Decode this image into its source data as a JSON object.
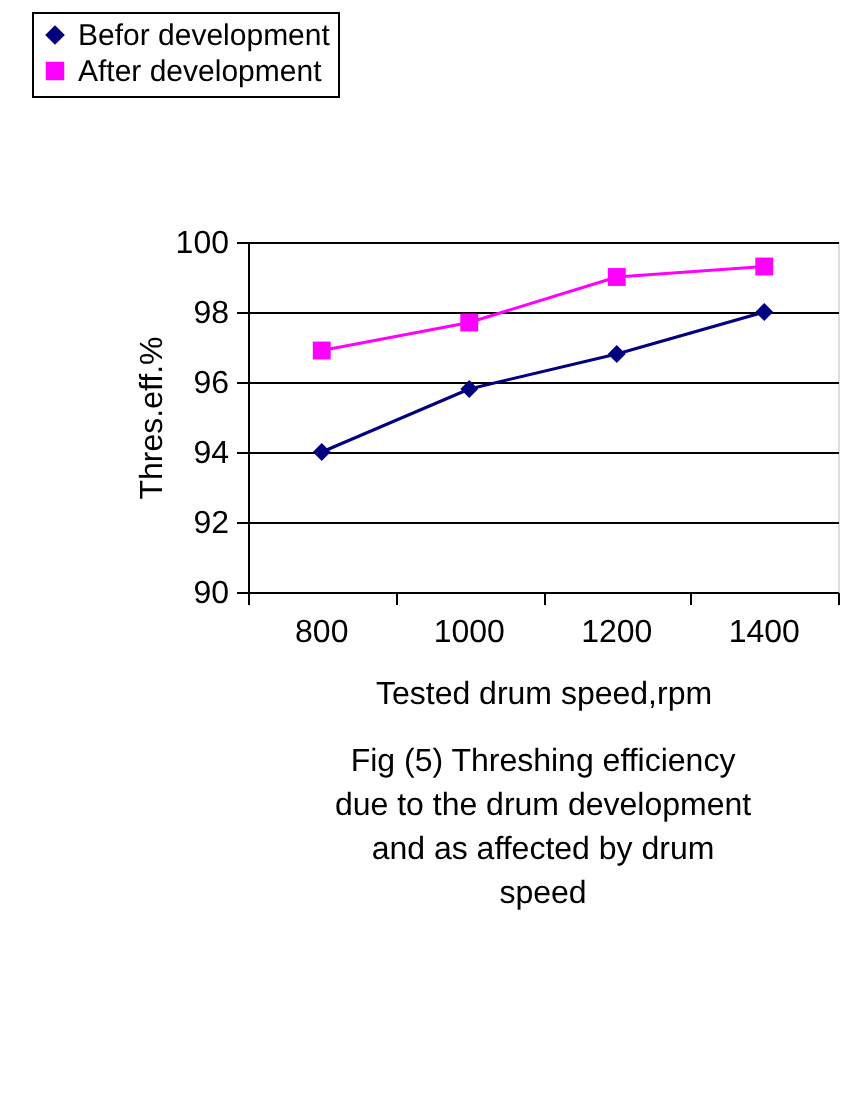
{
  "chart_data": {
    "type": "line",
    "xlabel": "Tested drum speed,rpm",
    "ylabel": "Thres.eff.%",
    "categories": [
      "800",
      "1000",
      "1200",
      "1400"
    ],
    "series": [
      {
        "name": "Befor development",
        "color": "#000080",
        "marker": "diamond",
        "values": [
          94.0,
          95.8,
          96.8,
          98.0
        ]
      },
      {
        "name": "After development",
        "color": "#ff00ff",
        "marker": "square",
        "values": [
          96.9,
          97.7,
          99.0,
          99.3
        ]
      }
    ],
    "ylim": [
      90,
      100
    ],
    "yticks": [
      90,
      92,
      94,
      96,
      98,
      100
    ],
    "grid": "y",
    "legend": "top left",
    "annotations": [
      "Fig (5) Threshing efficiency due to the drum development and as affected by drum speed"
    ]
  }
}
